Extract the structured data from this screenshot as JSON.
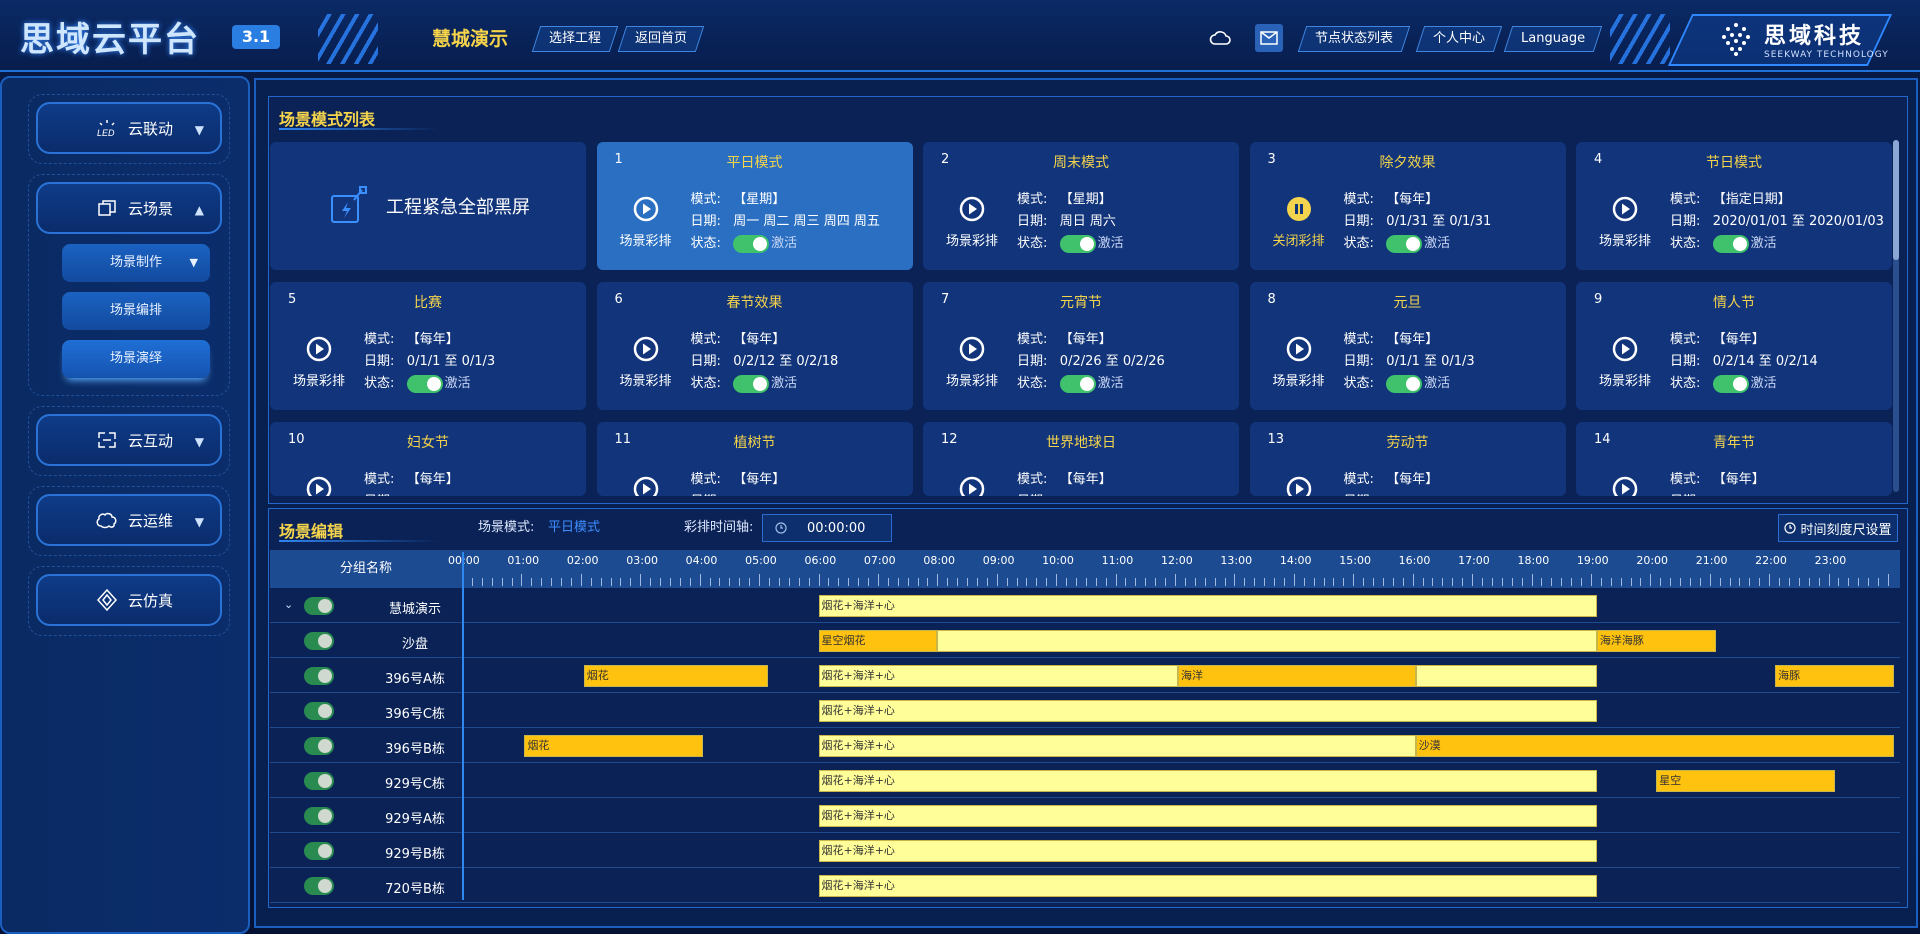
{
  "header": {
    "logo": "思域云平台",
    "version": "3.1",
    "project": "慧城演示",
    "nav_buttons": [
      "选择工程",
      "返回首页"
    ],
    "right_buttons": [
      "节点状态列表",
      "个人中心",
      "Language"
    ],
    "icons": [
      "cloud-icon",
      "mail-icon"
    ],
    "brand_cn": "思域科技",
    "brand_en": "SEEKWAY TECHNOLOGY"
  },
  "sidebar": {
    "items": [
      {
        "label": "云联动",
        "icon": "led-icon"
      },
      {
        "label": "云场景",
        "icon": "scene-icon"
      },
      {
        "label": "云互动",
        "icon": "interact-icon"
      },
      {
        "label": "云运维",
        "icon": "brain-icon"
      },
      {
        "label": "云仿真",
        "icon": "diamond-icon"
      }
    ],
    "sub_items": [
      "场景制作",
      "场景编排",
      "场景演绎"
    ]
  },
  "scene_list": {
    "title": "场景模式列表",
    "emergency_label": "工程紧急全部黑屏",
    "labels": {
      "mode": "模式:",
      "date": "日期:",
      "status": "状态:",
      "active": "激活"
    },
    "cards": [
      {
        "num": "1",
        "name": "平日模式",
        "action": "场景彩排",
        "mode": "【星期】",
        "date": "周一 周二 周三 周四 周五",
        "paused": false
      },
      {
        "num": "2",
        "name": "周末模式",
        "action": "场景彩排",
        "mode": "【星期】",
        "date": "周日 周六",
        "paused": false
      },
      {
        "num": "3",
        "name": "除夕效果",
        "action": "关闭彩排",
        "mode": "【每年】",
        "date": "0/1/31 至 0/1/31",
        "paused": true
      },
      {
        "num": "4",
        "name": "节日模式",
        "action": "场景彩排",
        "mode": "【指定日期】",
        "date": "2020/01/01 至 2020/01/03",
        "paused": false
      },
      {
        "num": "5",
        "name": "比赛",
        "action": "场景彩排",
        "mode": "【每年】",
        "date": "0/1/1 至 0/1/3",
        "paused": false
      },
      {
        "num": "6",
        "name": "春节效果",
        "action": "场景彩排",
        "mode": "【每年】",
        "date": "0/2/12 至 0/2/18",
        "paused": false
      },
      {
        "num": "7",
        "name": "元宵节",
        "action": "场景彩排",
        "mode": "【每年】",
        "date": "0/2/26 至 0/2/26",
        "paused": false
      },
      {
        "num": "8",
        "name": "元旦",
        "action": "场景彩排",
        "mode": "【每年】",
        "date": "0/1/1 至 0/1/3",
        "paused": false
      },
      {
        "num": "9",
        "name": "情人节",
        "action": "场景彩排",
        "mode": "【每年】",
        "date": "0/2/14 至 0/2/14",
        "paused": false
      },
      {
        "num": "10",
        "name": "妇女节",
        "action": "",
        "mode": "【每年】",
        "date": "",
        "paused": false
      },
      {
        "num": "11",
        "name": "植树节",
        "action": "",
        "mode": "【每年】",
        "date": "",
        "paused": false
      },
      {
        "num": "12",
        "name": "世界地球日",
        "action": "",
        "mode": "【每年】",
        "date": "",
        "paused": false
      },
      {
        "num": "13",
        "name": "劳动节",
        "action": "",
        "mode": "【每年】",
        "date": "",
        "paused": false
      },
      {
        "num": "14",
        "name": "青年节",
        "action": "",
        "mode": "【每年】",
        "date": "",
        "paused": false
      }
    ]
  },
  "editor": {
    "title": "场景编辑",
    "mode_label": "场景模式:",
    "mode_value": "平日模式",
    "time_label": "彩排时间轴:",
    "time_value": "00:00:00",
    "setting_btn": "时间刻度尺设置",
    "group_header": "分组名称",
    "hours": [
      "00:00",
      "01:00",
      "02:00",
      "03:00",
      "04:00",
      "05:00",
      "06:00",
      "07:00",
      "08:00",
      "09:00",
      "10:00",
      "11:00",
      "12:00",
      "13:00",
      "14:00",
      "15:00",
      "16:00",
      "17:00",
      "18:00",
      "19:00",
      "20:00",
      "21:00",
      "22:00",
      "23:00"
    ],
    "rows": [
      {
        "name": "慧城演示",
        "expand": true,
        "segments": [
          {
            "label": "烟花+海洋+心",
            "start": 6.0,
            "end": 19.1,
            "color": "light"
          }
        ]
      },
      {
        "name": "沙盘",
        "expand": false,
        "segments": [
          {
            "label": "星空烟花",
            "start": 6.0,
            "end": 8.0,
            "color": "orange"
          },
          {
            "label": "",
            "start": 8.0,
            "end": 19.1,
            "color": "light"
          },
          {
            "label": "海洋海豚",
            "start": 19.1,
            "end": 21.1,
            "color": "orange"
          }
        ]
      },
      {
        "name": "396号A栋",
        "expand": false,
        "segments": [
          {
            "label": "烟花",
            "start": 2.05,
            "end": 5.15,
            "color": "orange"
          },
          {
            "label": "烟花+海洋+心",
            "start": 6.0,
            "end": 12.05,
            "color": "light"
          },
          {
            "label": "海洋",
            "start": 12.05,
            "end": 16.05,
            "color": "orange"
          },
          {
            "label": "",
            "start": 16.05,
            "end": 19.1,
            "color": "light"
          },
          {
            "label": "海豚",
            "start": 22.1,
            "end": 24.1,
            "color": "orange"
          }
        ]
      },
      {
        "name": "396号C栋",
        "expand": false,
        "segments": [
          {
            "label": "烟花+海洋+心",
            "start": 6.0,
            "end": 19.1,
            "color": "light"
          }
        ]
      },
      {
        "name": "396号B栋",
        "expand": false,
        "segments": [
          {
            "label": "烟花",
            "start": 1.05,
            "end": 4.05,
            "color": "orange"
          },
          {
            "label": "烟花+海洋+心",
            "start": 6.0,
            "end": 16.05,
            "color": "light"
          },
          {
            "label": "沙漠",
            "start": 16.05,
            "end": 24.1,
            "color": "orange"
          }
        ]
      },
      {
        "name": "929号C栋",
        "expand": false,
        "segments": [
          {
            "label": "烟花+海洋+心",
            "start": 6.0,
            "end": 19.1,
            "color": "light"
          },
          {
            "label": "星空",
            "start": 20.1,
            "end": 23.1,
            "color": "orange"
          }
        ]
      },
      {
        "name": "929号A栋",
        "expand": false,
        "segments": [
          {
            "label": "烟花+海洋+心",
            "start": 6.0,
            "end": 19.1,
            "color": "light"
          }
        ]
      },
      {
        "name": "929号B栋",
        "expand": false,
        "segments": [
          {
            "label": "烟花+海洋+心",
            "start": 6.0,
            "end": 19.1,
            "color": "light"
          }
        ]
      },
      {
        "name": "720号B栋",
        "expand": false,
        "segments": [
          {
            "label": "烟花+海洋+心",
            "start": 6.0,
            "end": 19.1,
            "color": "light"
          }
        ]
      }
    ]
  },
  "colors": {
    "accent": "#2f87f0",
    "title_yellow": "#f4d44c",
    "segment_light": "#fffe99",
    "segment_orange": "#ffc20e",
    "toggle_green": "#3fc26b"
  }
}
